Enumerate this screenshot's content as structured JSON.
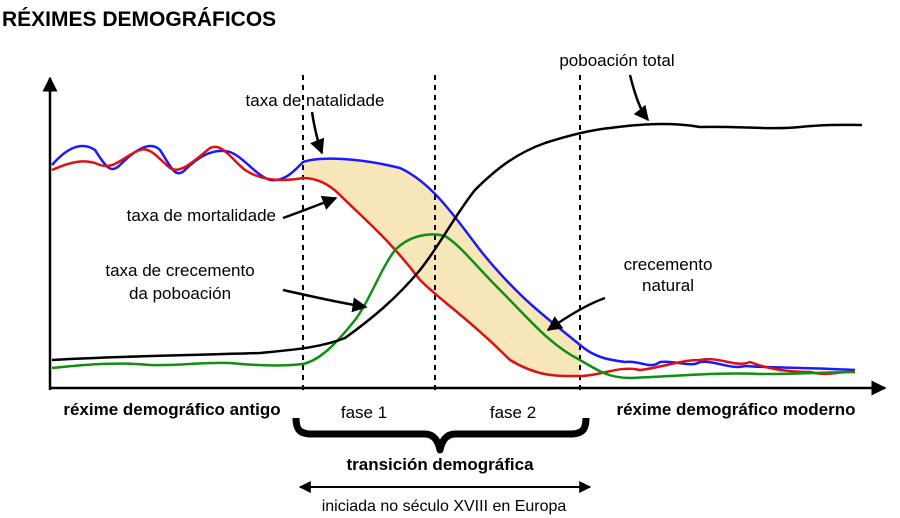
{
  "title": "RÉXIMES DEMOGRÁFICOS",
  "labels": {
    "total_population": "poboación total",
    "birth_rate": "taxa de natalidade",
    "death_rate": "taxa de mortalidade",
    "growth_rate": [
      "taxa de crecemento",
      "da poboación"
    ],
    "natural_growth": [
      "crecemento",
      "natural"
    ]
  },
  "phases": {
    "old_regime": "réxime demográfico antigo",
    "phase_1": "fase 1",
    "phase_2": "fase 2",
    "modern_regime": "réxime demográfico moderno",
    "transition": "transición demográfica",
    "note": "iniciada no século XVIII en Europa"
  }
}
